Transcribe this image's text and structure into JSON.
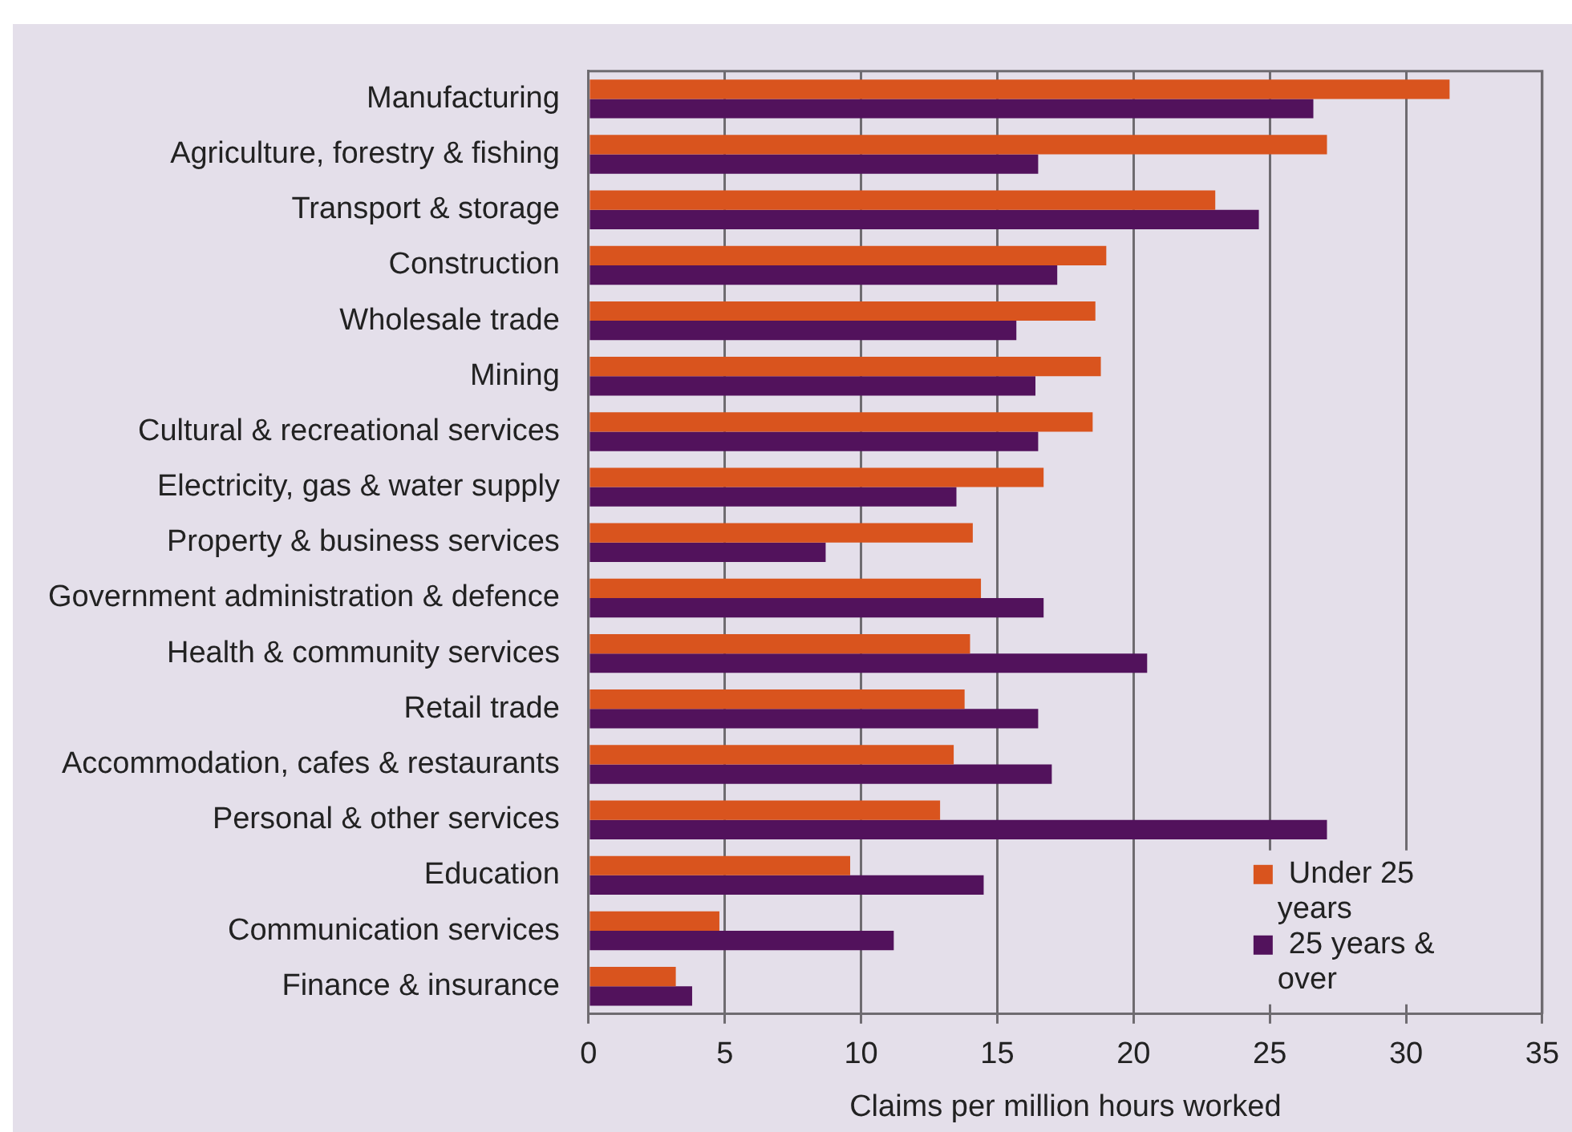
{
  "chart_data": {
    "type": "bar",
    "orientation": "horizontal",
    "xlabel": "Claims per million hours worked",
    "categories": [
      "Manufacturing",
      "Agriculture, forestry & fishing",
      "Transport & storage",
      "Construction",
      "Wholesale trade",
      "Mining",
      "Cultural & recreational services",
      "Electricity, gas & water supply",
      "Property & business services",
      "Government administration & defence",
      "Health & community services",
      "Retail trade",
      "Accommodation, cafes & restaurants",
      "Personal & other services",
      "Education",
      "Communication services",
      "Finance & insurance"
    ],
    "series": [
      {
        "name": "Under 25 years",
        "color": "#d9541e",
        "values": [
          31.6,
          27.1,
          23.0,
          19.0,
          18.6,
          18.8,
          18.5,
          16.7,
          14.1,
          14.4,
          14.0,
          13.8,
          13.4,
          12.9,
          9.6,
          4.8,
          3.2
        ]
      },
      {
        "name": "25 years & over",
        "color": "#52125c",
        "values": [
          26.6,
          16.5,
          24.6,
          17.2,
          15.7,
          16.4,
          16.5,
          13.5,
          8.7,
          16.7,
          20.5,
          16.5,
          17.0,
          27.1,
          14.5,
          11.2,
          3.8
        ]
      }
    ],
    "xlim": [
      0,
      35
    ],
    "xticks": [
      0,
      5,
      10,
      15,
      20,
      25,
      30,
      35
    ],
    "grid": "x",
    "legend": "bottom right"
  }
}
